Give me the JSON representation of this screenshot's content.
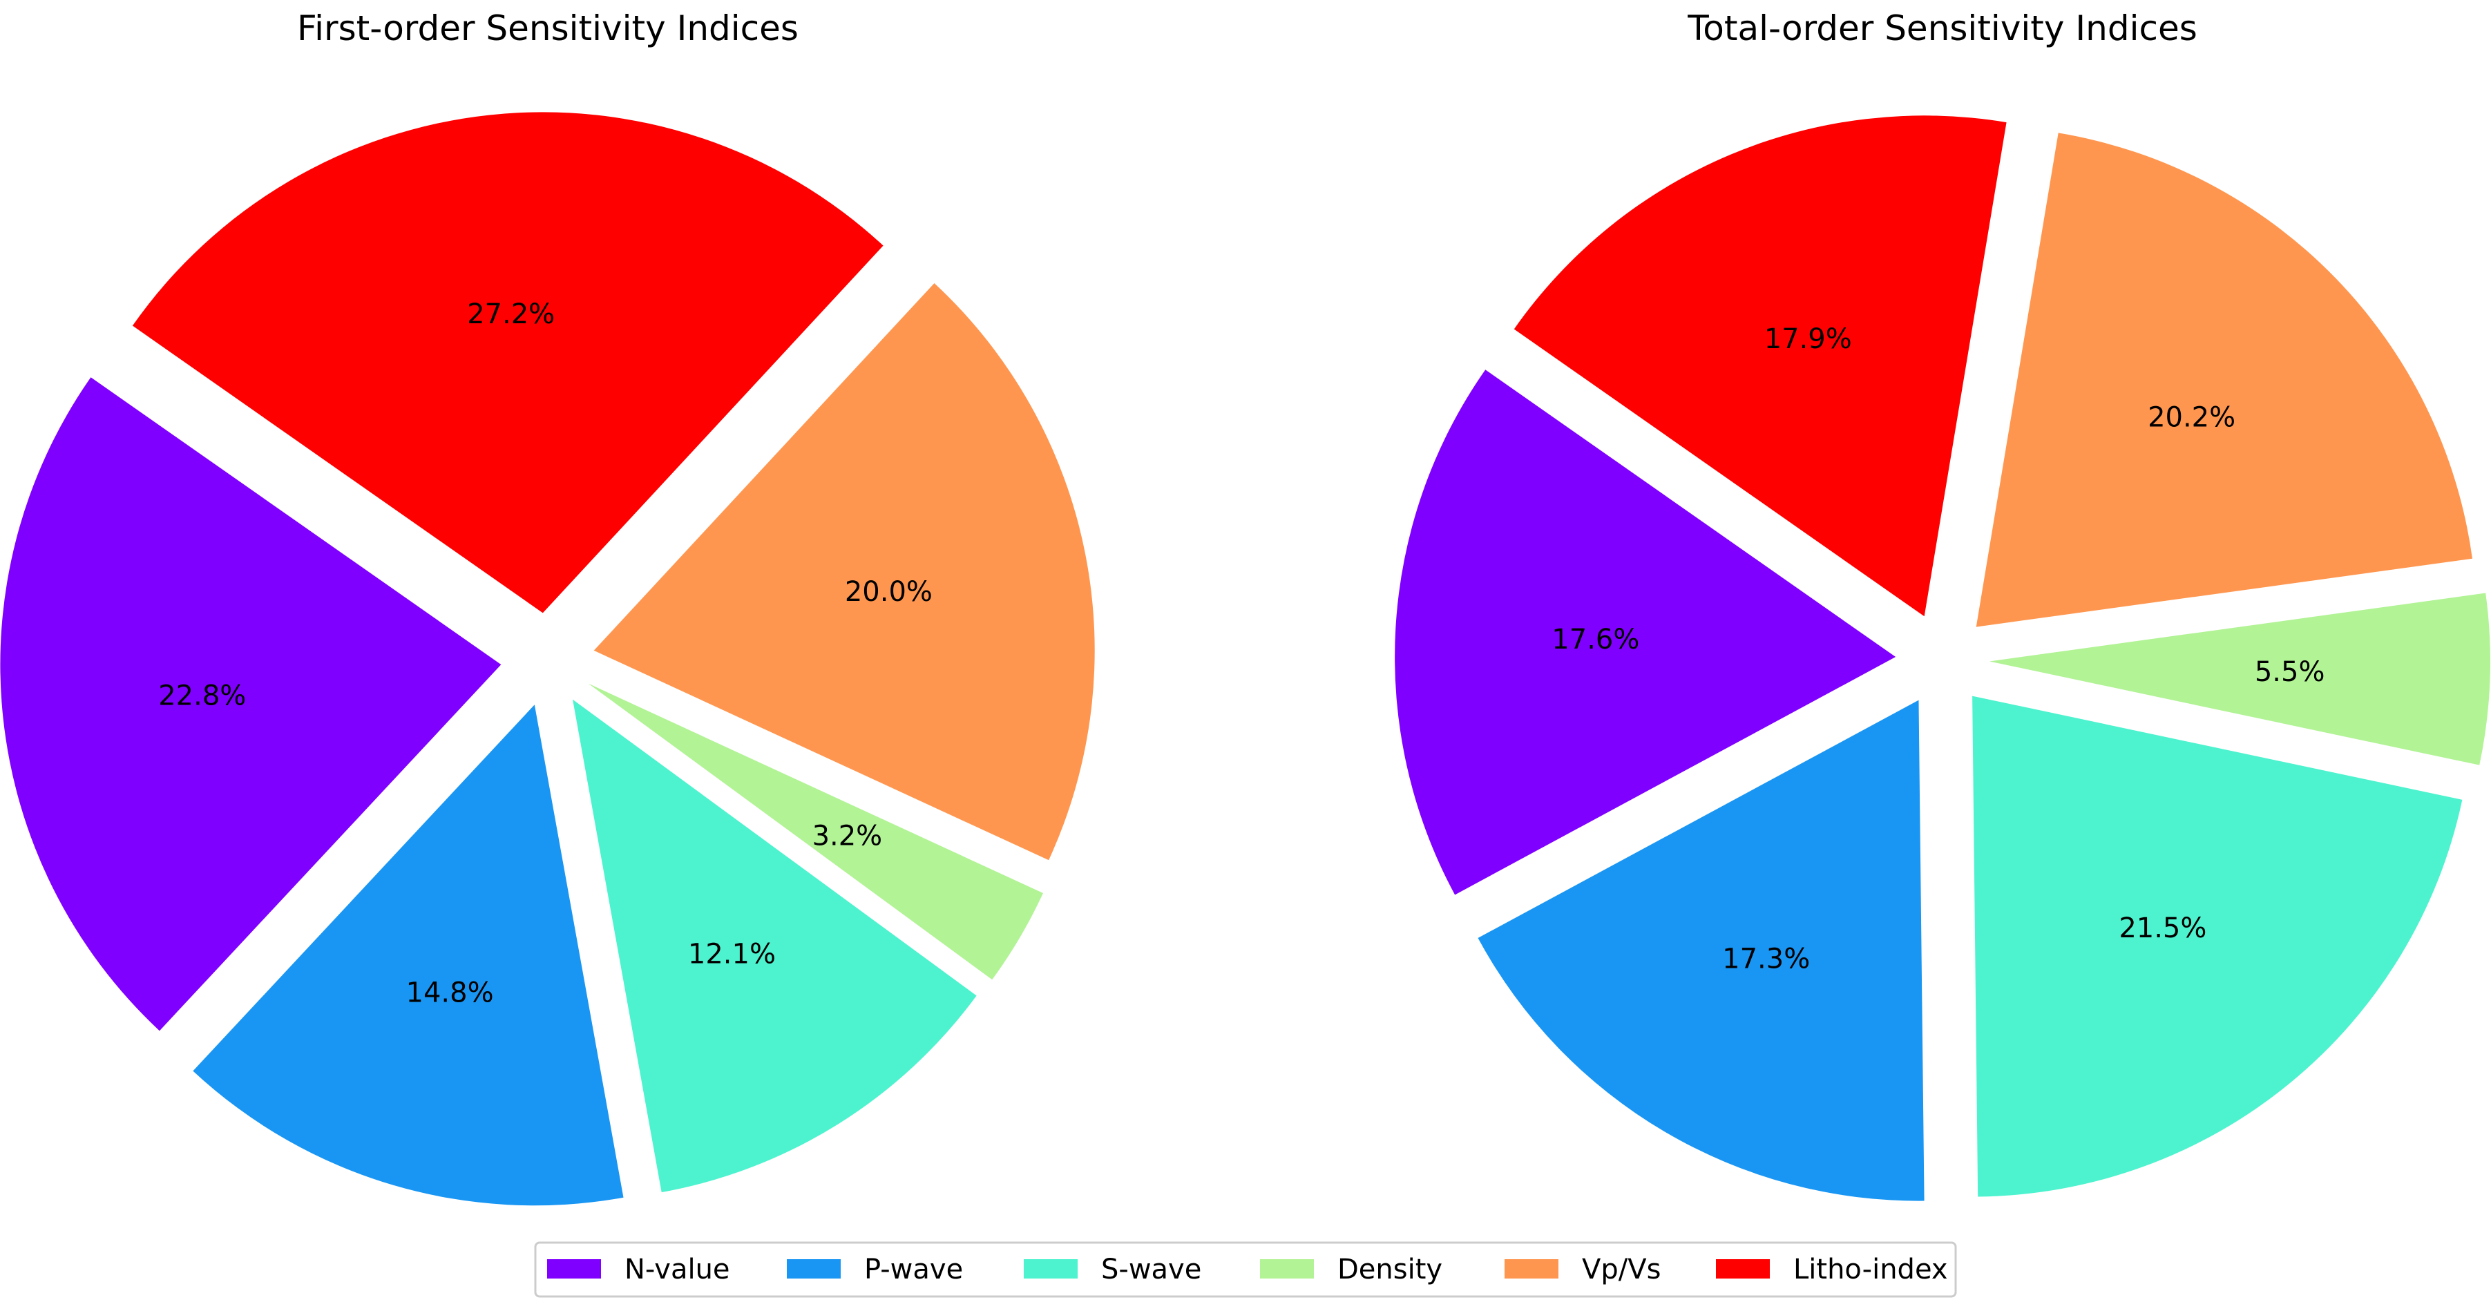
{
  "chart_data": [
    {
      "type": "pie",
      "title": "First-order Sensitivity Indices",
      "slices": [
        {
          "name": "N-value",
          "value": 22.8,
          "label": "22.8%",
          "color": "#8000ff"
        },
        {
          "name": "P-wave",
          "value": 14.8,
          "label": "14.8%",
          "color": "#1996f3"
        },
        {
          "name": "S-wave",
          "value": 12.1,
          "label": "12.1%",
          "color": "#4df3ce"
        },
        {
          "name": "Density",
          "value": 3.2,
          "label": "3.2%",
          "color": "#b2f396"
        },
        {
          "name": "Vp/Vs",
          "value": 20.0,
          "label": "20.0%",
          "color": "#ff964f"
        },
        {
          "name": "Litho-index",
          "value": 27.2,
          "label": "27.2%",
          "color": "#ff0000"
        }
      ],
      "exploded": true
    },
    {
      "type": "pie",
      "title": "Total-order Sensitivity Indices",
      "slices": [
        {
          "name": "N-value",
          "value": 17.6,
          "label": "17.6%",
          "color": "#8000ff"
        },
        {
          "name": "P-wave",
          "value": 17.3,
          "label": "17.3%",
          "color": "#1996f3"
        },
        {
          "name": "S-wave",
          "value": 21.5,
          "label": "21.5%",
          "color": "#4df3ce"
        },
        {
          "name": "Density",
          "value": 5.5,
          "label": "5.5%",
          "color": "#b2f396"
        },
        {
          "name": "Vp/Vs",
          "value": 20.2,
          "label": "20.2%",
          "color": "#ff964f"
        },
        {
          "name": "Litho-index",
          "value": 17.9,
          "label": "17.9%",
          "color": "#ff0000"
        }
      ],
      "exploded": true
    }
  ],
  "legend": {
    "placement": "bottom-center",
    "entries": [
      {
        "name": "N-value",
        "color": "#8000ff"
      },
      {
        "name": "P-wave",
        "color": "#1996f3"
      },
      {
        "name": "S-wave",
        "color": "#4df3ce"
      },
      {
        "name": "Density",
        "color": "#b2f396"
      },
      {
        "name": "Vp/Vs",
        "color": "#ff964f"
      },
      {
        "name": "Litho-index",
        "color": "#ff0000"
      }
    ]
  }
}
